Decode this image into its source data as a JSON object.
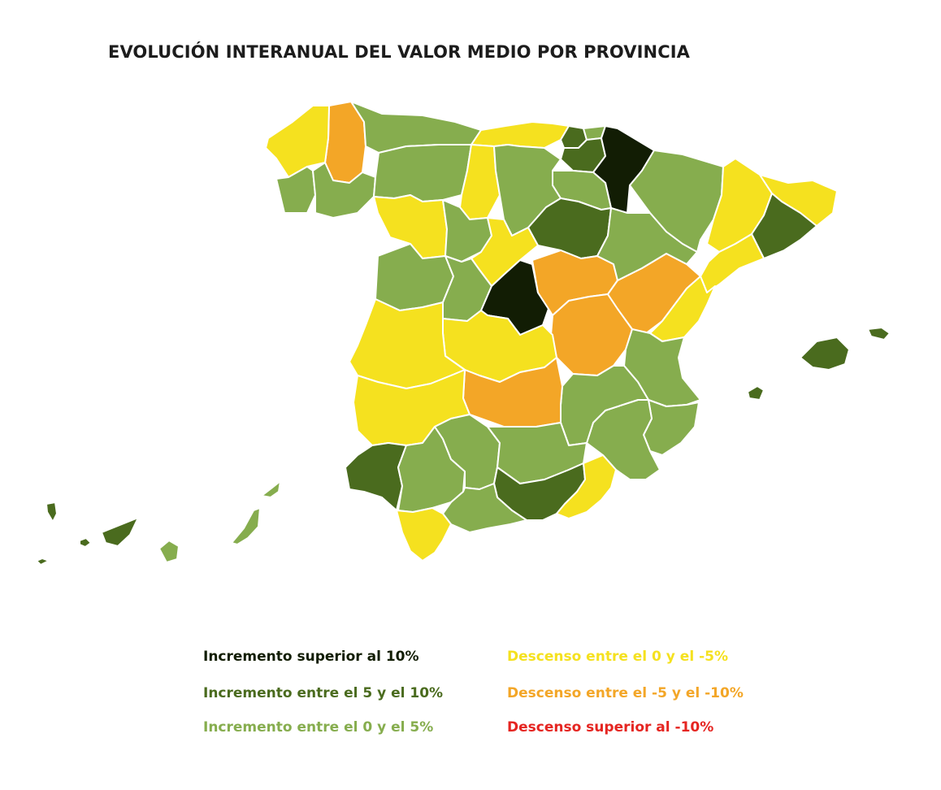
{
  "title": "EVOLUCIÓN INTERANUAL DEL VALOR MEDIO POR PROVINCIA",
  "colors": {
    "inc_over_10": "#121d04",
    "inc_5_10": "#4a6b1e",
    "inc_0_5": "#86ad4e",
    "dec_0_5": "#f5e11f",
    "dec_5_10": "#f3a627",
    "dec_over_10": "#e52521"
  },
  "legend": [
    {
      "label": "Incremento superior al 10%",
      "color": "#121d04"
    },
    {
      "label": "Incremento entre el 5 y el 10%",
      "color": "#4a6b1e"
    },
    {
      "label": "Incremento entre el 0 y el 5%",
      "color": "#86ad4e"
    },
    {
      "label": "Descenso entre el 0 y el -5%",
      "color": "#f5e11f"
    },
    {
      "label": "Descenso entre el -5 y el -10%",
      "color": "#f3a627"
    },
    {
      "label": "Descenso superior al -10%",
      "color": "#e52521"
    }
  ],
  "regions": [
    {
      "name": "Lugo",
      "category": "dec_5_10"
    },
    {
      "name": "A Coruña",
      "category": "dec_0_5"
    },
    {
      "name": "Pontevedra",
      "category": "inc_0_5"
    },
    {
      "name": "Ourense",
      "category": "inc_0_5"
    },
    {
      "name": "Asturias",
      "category": "inc_0_5"
    },
    {
      "name": "Cantabria",
      "category": "dec_0_5"
    },
    {
      "name": "Bizkaia",
      "category": "inc_5_10"
    },
    {
      "name": "Gipuzkoa",
      "category": "inc_0_5"
    },
    {
      "name": "Álava",
      "category": "inc_5_10"
    },
    {
      "name": "Navarra",
      "category": "inc_over_10"
    },
    {
      "name": "La Rioja",
      "category": "inc_0_5"
    },
    {
      "name": "León",
      "category": "inc_0_5"
    },
    {
      "name": "Palencia",
      "category": "dec_0_5"
    },
    {
      "name": "Burgos",
      "category": "inc_0_5"
    },
    {
      "name": "Zamora",
      "category": "dec_0_5"
    },
    {
      "name": "Valladolid",
      "category": "inc_0_5"
    },
    {
      "name": "Soria",
      "category": "inc_5_10"
    },
    {
      "name": "Segovia",
      "category": "dec_0_5"
    },
    {
      "name": "Salamanca",
      "category": "inc_0_5"
    },
    {
      "name": "Ávila",
      "category": "inc_0_5"
    },
    {
      "name": "Madrid",
      "category": "inc_over_10"
    },
    {
      "name": "Guadalajara",
      "category": "dec_5_10"
    },
    {
      "name": "Cuenca",
      "category": "dec_5_10"
    },
    {
      "name": "Teruel",
      "category": "dec_5_10"
    },
    {
      "name": "Zaragoza",
      "category": "inc_0_5"
    },
    {
      "name": "Huesca",
      "category": "inc_0_5"
    },
    {
      "name": "Lleida",
      "category": "dec_0_5"
    },
    {
      "name": "Girona",
      "category": "dec_0_5"
    },
    {
      "name": "Barcelona",
      "category": "inc_5_10"
    },
    {
      "name": "Tarragona",
      "category": "dec_0_5"
    },
    {
      "name": "Castellón",
      "category": "dec_0_5"
    },
    {
      "name": "Valencia",
      "category": "inc_0_5"
    },
    {
      "name": "Alicante",
      "category": "inc_0_5"
    },
    {
      "name": "Murcia",
      "category": "inc_0_5"
    },
    {
      "name": "Albacete",
      "category": "inc_0_5"
    },
    {
      "name": "Toledo",
      "category": "dec_0_5"
    },
    {
      "name": "Ciudad Real",
      "category": "dec_5_10"
    },
    {
      "name": "Cáceres",
      "category": "dec_0_5"
    },
    {
      "name": "Badajoz",
      "category": "dec_0_5"
    },
    {
      "name": "Huelva",
      "category": "inc_5_10"
    },
    {
      "name": "Sevilla",
      "category": "inc_0_5"
    },
    {
      "name": "Córdoba",
      "category": "inc_0_5"
    },
    {
      "name": "Jaén",
      "category": "inc_0_5"
    },
    {
      "name": "Granada",
      "category": "inc_5_10"
    },
    {
      "name": "Almería",
      "category": "dec_0_5"
    },
    {
      "name": "Málaga",
      "category": "inc_0_5"
    },
    {
      "name": "Cádiz",
      "category": "dec_0_5"
    },
    {
      "name": "Mallorca",
      "category": "inc_5_10"
    },
    {
      "name": "Menorca",
      "category": "inc_5_10"
    },
    {
      "name": "Ibiza",
      "category": "inc_5_10"
    },
    {
      "name": "Tenerife",
      "category": "inc_5_10"
    },
    {
      "name": "La Palma",
      "category": "inc_5_10"
    },
    {
      "name": "La Gomera",
      "category": "inc_5_10"
    },
    {
      "name": "El Hierro",
      "category": "inc_5_10"
    },
    {
      "name": "Gran Canaria",
      "category": "inc_0_5"
    },
    {
      "name": "Fuerteventura",
      "category": "inc_0_5"
    },
    {
      "name": "Lanzarote",
      "category": "inc_0_5"
    }
  ]
}
